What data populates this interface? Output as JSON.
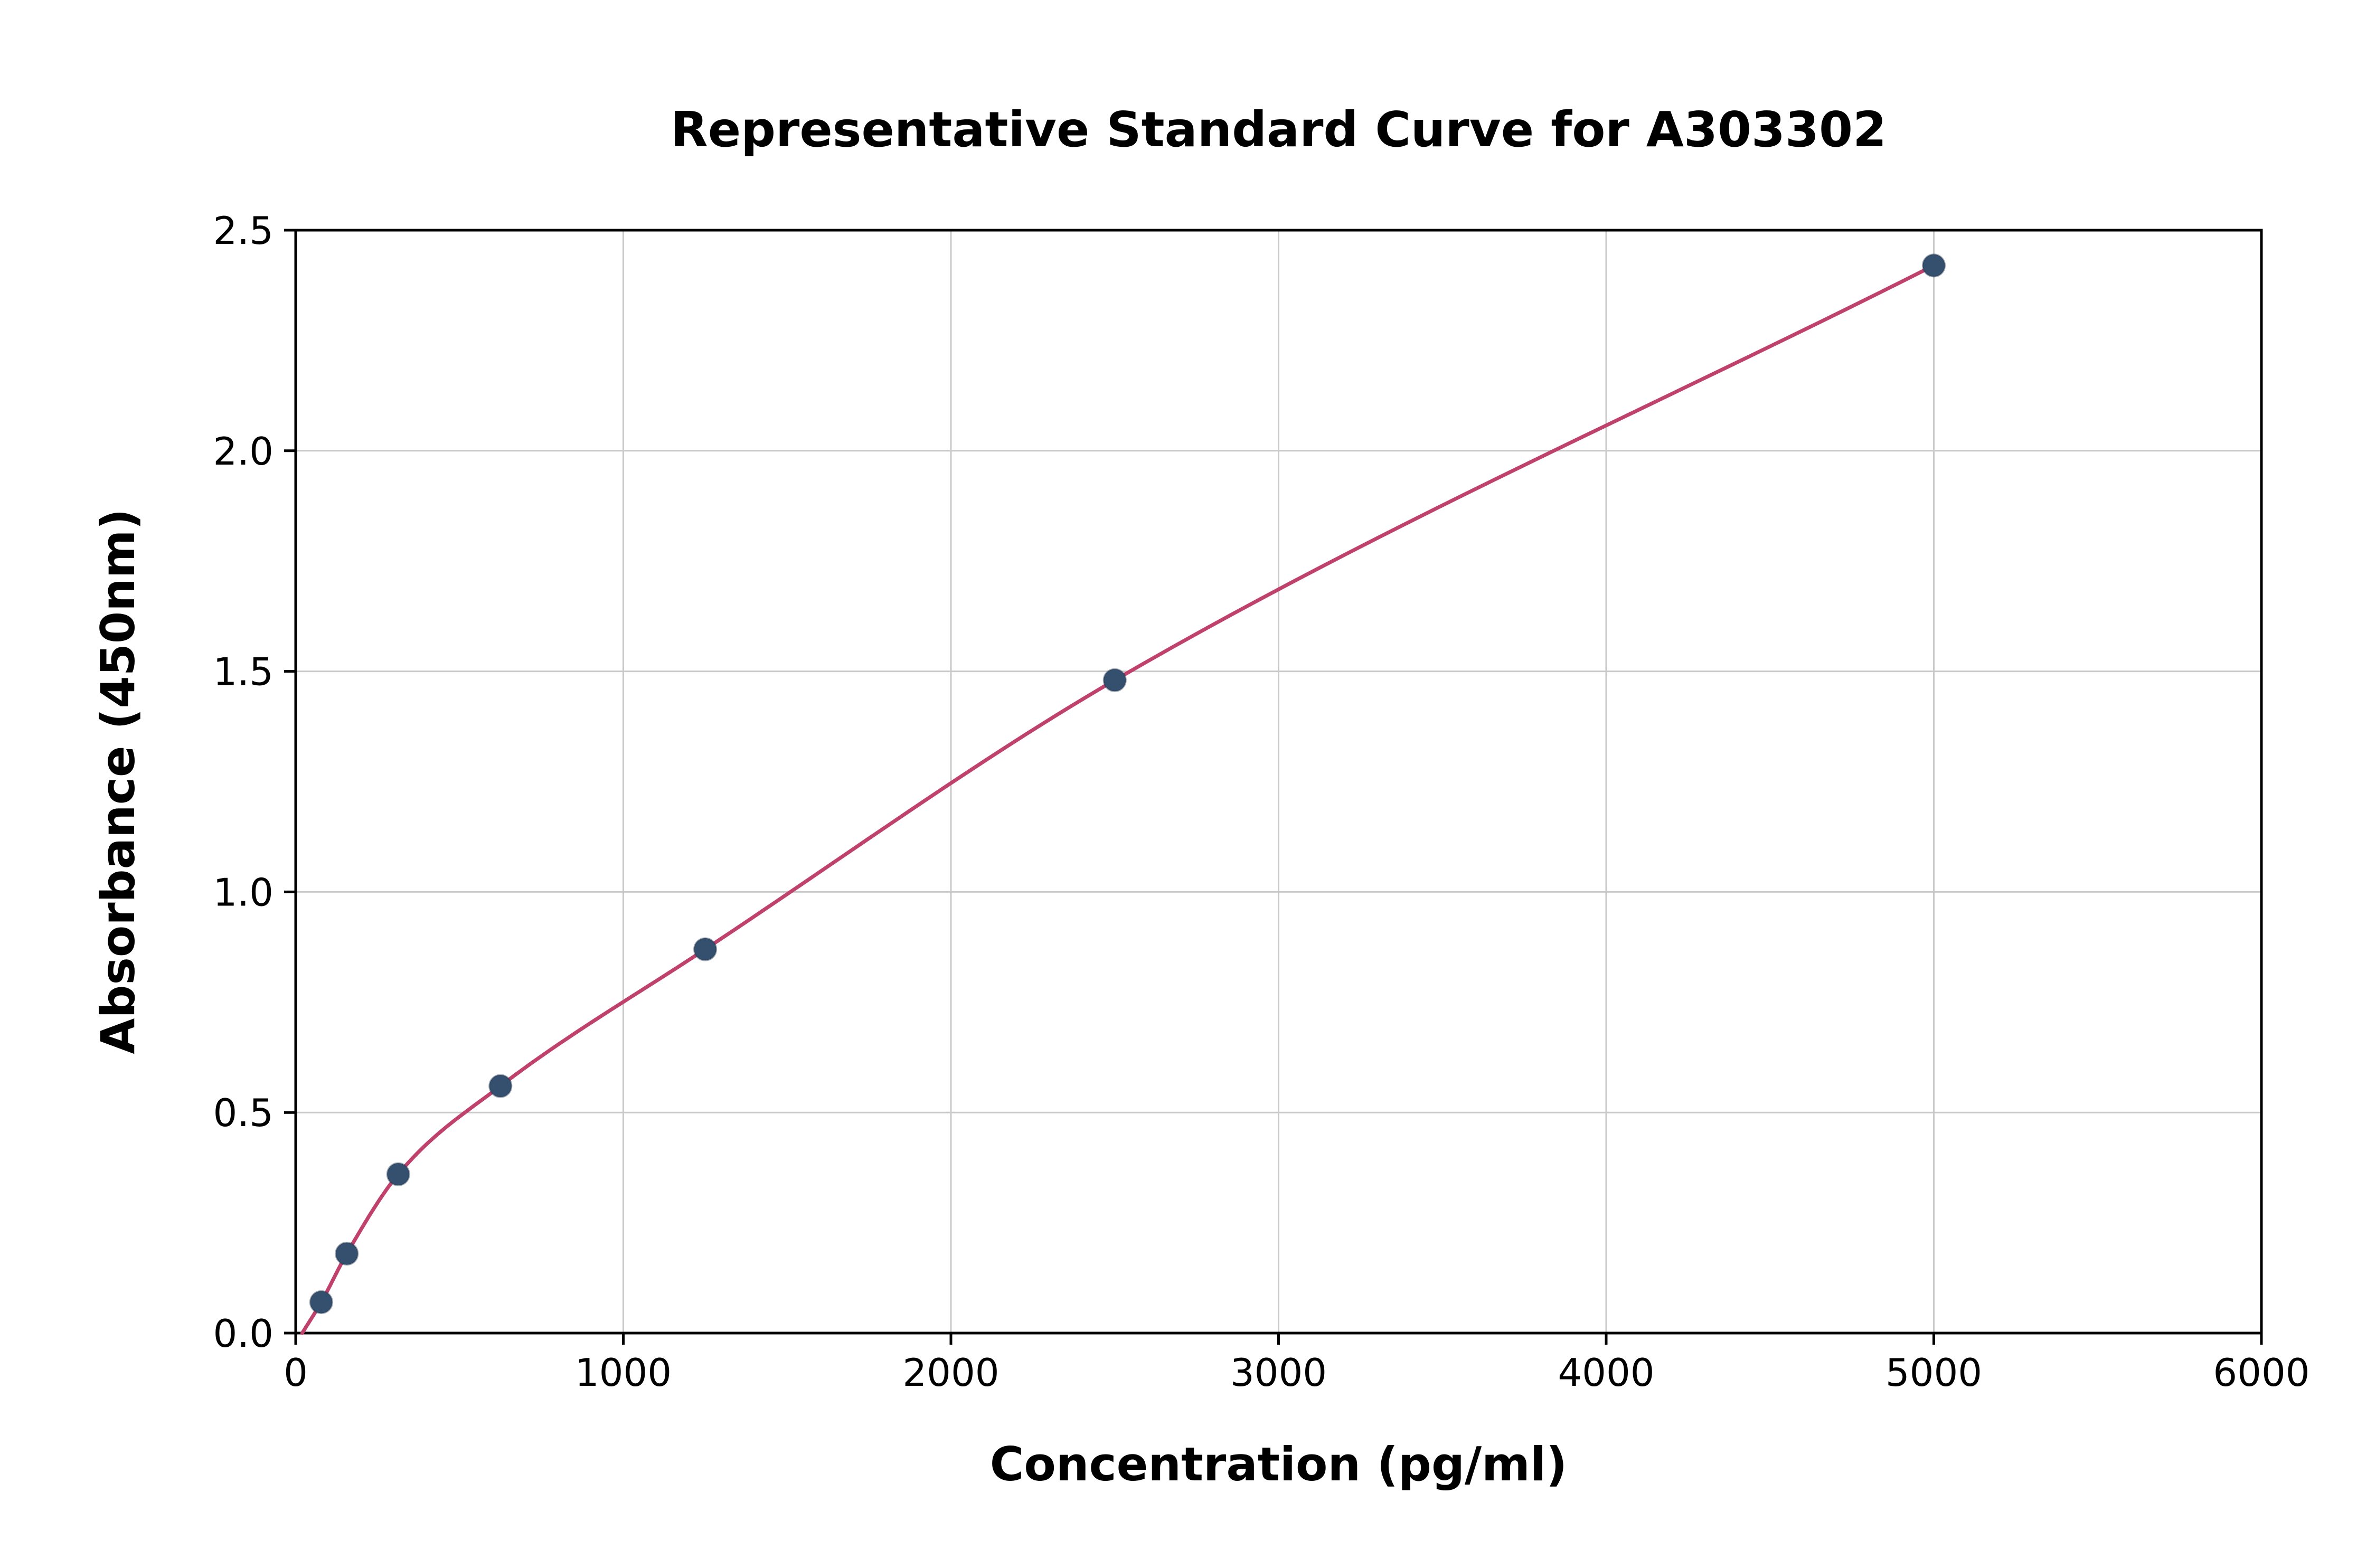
{
  "chart_data": {
    "type": "scatter",
    "title": "Representative Standard Curve for A303302",
    "xlabel": "Concentration (pg/ml)",
    "ylabel": "Absorbance (450nm)",
    "xlim": [
      0,
      6000
    ],
    "ylim": [
      0,
      2.5
    ],
    "grid": true,
    "legend": "none",
    "x_ticks": [
      0,
      1000,
      2000,
      3000,
      4000,
      5000,
      6000
    ],
    "x_tick_labels": [
      "0",
      "1000",
      "2000",
      "3000",
      "4000",
      "5000",
      "6000"
    ],
    "y_ticks": [
      0,
      0.5,
      1.0,
      1.5,
      2.0,
      2.5
    ],
    "y_tick_labels": [
      "0.0",
      "0.5",
      "1.0",
      "1.5",
      "2.0",
      "2.5"
    ],
    "points": {
      "x": [
        78,
        156,
        313,
        625,
        1250,
        2500,
        5000
      ],
      "y": [
        0.07,
        0.18,
        0.36,
        0.56,
        0.87,
        1.48,
        2.42
      ]
    },
    "curve_start": [
      20,
      0.0
    ],
    "colors": {
      "point_fill": "#35506e",
      "point_edge": "#24395270",
      "curve": "#c0416b",
      "grid": "#c9c9c9",
      "axis": "#000000",
      "background": "#ffffff"
    }
  }
}
